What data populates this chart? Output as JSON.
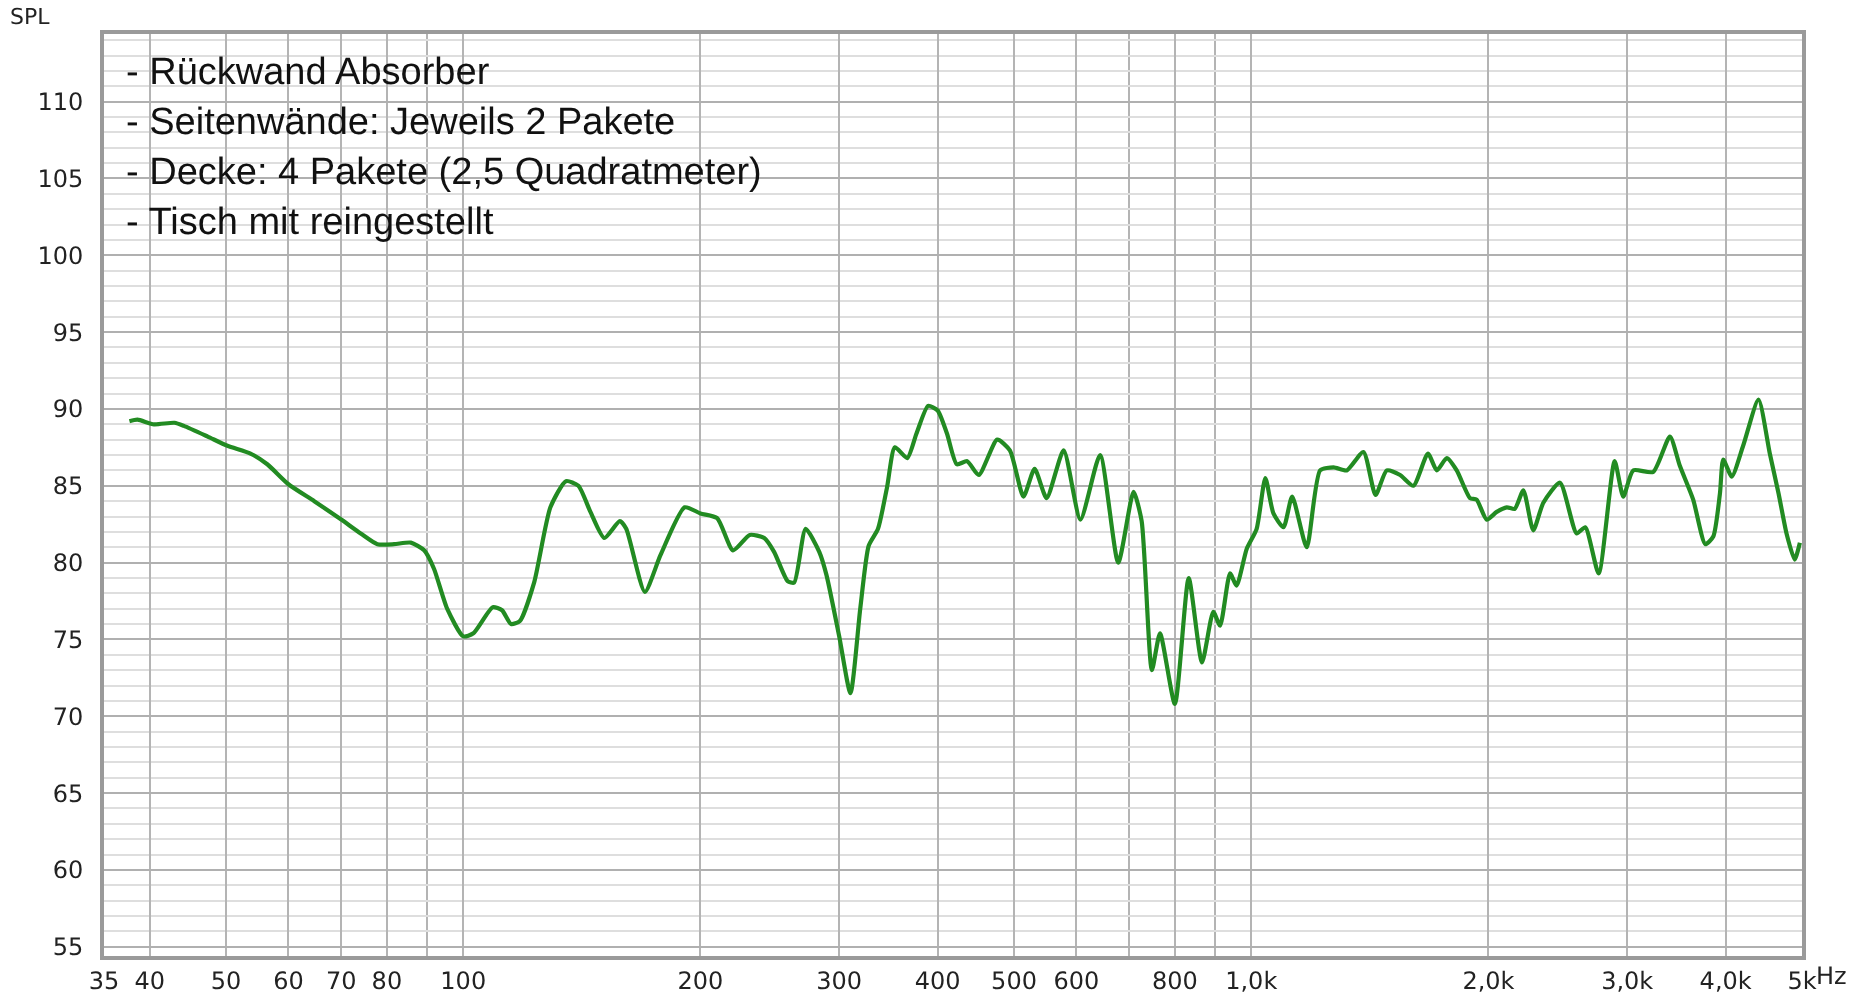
{
  "chart_data": {
    "type": "line",
    "ylabel": "SPL",
    "xlabel": "Hz",
    "annotations": [
      "- Rückwand Absorber",
      "- Seitenwände: Jeweils 2 Pakete",
      "- Decke: 4 Pakete (2,5 Quadratmeter)",
      "- Tisch mit reingestellt"
    ],
    "log": "x",
    "grid": true,
    "xlim": [
      35,
      5000
    ],
    "xticks": [
      35,
      40,
      50,
      60,
      70,
      80,
      {
        "value": 90,
        "label": null
      },
      100,
      200,
      300,
      400,
      500,
      600,
      {
        "value": 700,
        "label": null
      },
      800,
      {
        "value": 900,
        "label": null
      },
      {
        "value": 1000,
        "label": "1,0k"
      },
      {
        "value": 2000,
        "label": "2,0k"
      },
      {
        "value": 3000,
        "label": "3,0k"
      },
      {
        "value": 4000,
        "label": "4,0k"
      },
      {
        "value": 5000,
        "label": "5k"
      }
    ],
    "ylim": [
      54.4,
      114.4
    ],
    "yticks": [
      55,
      {
        "value": 56,
        "label": null
      },
      {
        "value": 57,
        "label": null
      },
      {
        "value": 58,
        "label": null
      },
      {
        "value": 59,
        "label": null
      },
      60,
      {
        "value": 61,
        "label": null
      },
      {
        "value": 62,
        "label": null
      },
      {
        "value": 63,
        "label": null
      },
      {
        "value": 64,
        "label": null
      },
      65,
      {
        "value": 66,
        "label": null
      },
      {
        "value": 67,
        "label": null
      },
      {
        "value": 68,
        "label": null
      },
      {
        "value": 69,
        "label": null
      },
      70,
      {
        "value": 71,
        "label": null
      },
      {
        "value": 72,
        "label": null
      },
      {
        "value": 73,
        "label": null
      },
      {
        "value": 74,
        "label": null
      },
      75,
      {
        "value": 76,
        "label": null
      },
      {
        "value": 77,
        "label": null
      },
      {
        "value": 78,
        "label": null
      },
      {
        "value": 79,
        "label": null
      },
      80,
      {
        "value": 81,
        "label": null
      },
      {
        "value": 82,
        "label": null
      },
      {
        "value": 83,
        "label": null
      },
      {
        "value": 84,
        "label": null
      },
      85,
      {
        "value": 86,
        "label": null
      },
      {
        "value": 87,
        "label": null
      },
      {
        "value": 88,
        "label": null
      },
      {
        "value": 89,
        "label": null
      },
      90,
      {
        "value": 91,
        "label": null
      },
      {
        "value": 92,
        "label": null
      },
      {
        "value": 93,
        "label": null
      },
      {
        "value": 94,
        "label": null
      },
      95,
      {
        "value": 96,
        "label": null
      },
      {
        "value": 97,
        "label": null
      },
      {
        "value": 98,
        "label": null
      },
      {
        "value": 99,
        "label": null
      },
      100,
      {
        "value": 101,
        "label": null
      },
      {
        "value": 102,
        "label": null
      },
      {
        "value": 103,
        "label": null
      },
      {
        "value": 104,
        "label": null
      },
      105,
      {
        "value": 106,
        "label": null
      },
      {
        "value": 107,
        "label": null
      },
      {
        "value": 108,
        "label": null
      },
      {
        "value": 109,
        "label": null
      },
      110,
      {
        "value": 111,
        "label": null
      },
      {
        "value": 112,
        "label": null
      },
      {
        "value": 113,
        "label": null
      },
      {
        "value": 114,
        "label": null
      }
    ],
    "x": [
      37.7,
      38.6,
      40.5,
      43.0,
      44.2,
      47.4,
      50.2,
      53.7,
      56.4,
      60,
      64.7,
      70,
      74.1,
      77.8,
      81.7,
      85.8,
      89.2,
      91.8,
      95.4,
      100,
      103,
      109,
      112,
      115,
      118,
      123,
      129,
      135,
      140,
      145,
      151,
      158,
      161,
      170,
      178,
      191,
      200,
      210,
      220,
      231,
      241,
      248,
      258,
      263,
      272,
      283,
      289,
      300,
      310,
      319,
      327,
      336,
      345,
      353,
      366,
      376,
      389,
      400,
      411,
      423,
      436,
      451,
      476,
      494,
      514,
      531,
      550,
      578,
      607,
      643,
      678,
      709,
      726,
      748,
      766,
      800,
      833,
      866,
      895,
      913,
      940,
      958,
      987,
      1016,
      1042,
      1067,
      1099,
      1127,
      1176,
      1223,
      1272,
      1322,
      1388,
      1438,
      1486,
      1545,
      1606,
      1676,
      1720,
      1771,
      1823,
      1895,
      1932,
      1990,
      2049,
      2110,
      2160,
      2215,
      2280,
      2348,
      2465,
      2588,
      2654,
      2760,
      2892,
      2966,
      3053,
      3237,
      3399,
      3499,
      3638,
      3769,
      3858,
      3934,
      3972,
      4073,
      4210,
      4403,
      4551,
      4669,
      4779,
      4893,
      4969
    ],
    "series": [
      {
        "color": "#228b22",
        "values": [
          89.2,
          89.3,
          89.0,
          89.1,
          88.9,
          88.2,
          87.6,
          87.1,
          86.4,
          85.1,
          84.0,
          82.8,
          81.9,
          81.2,
          81.2,
          81.3,
          80.8,
          79.6,
          77.0,
          75.2,
          75.4,
          77.1,
          76.9,
          76.0,
          76.2,
          78.7,
          83.6,
          85.3,
          85.0,
          83.3,
          81.6,
          82.7,
          82.2,
          78.1,
          80.5,
          83.6,
          83.2,
          82.9,
          80.8,
          81.8,
          81.6,
          80.7,
          78.8,
          78.7,
          82.2,
          80.7,
          79.2,
          75.2,
          71.5,
          77.0,
          81.1,
          82.2,
          84.9,
          87.5,
          86.8,
          88.4,
          90.2,
          89.9,
          88.4,
          86.4,
          86.6,
          85.7,
          88.0,
          87.3,
          84.3,
          86.1,
          84.2,
          87.3,
          82.8,
          87.0,
          80.0,
          84.6,
          82.7,
          73.0,
          75.4,
          70.8,
          79.0,
          73.5,
          76.8,
          75.9,
          79.3,
          78.5,
          80.9,
          82.2,
          85.5,
          83.2,
          82.3,
          84.3,
          81.0,
          86.0,
          86.2,
          86.0,
          87.2,
          84.4,
          86.0,
          85.7,
          85.0,
          87.1,
          86.0,
          86.8,
          86.0,
          84.2,
          84.1,
          82.8,
          83.3,
          83.6,
          83.5,
          84.7,
          82.1,
          83.9,
          85.2,
          81.9,
          82.3,
          79.3,
          86.6,
          84.3,
          86.0,
          85.9,
          88.2,
          86.3,
          84.1,
          81.2,
          81.7,
          84.5,
          86.7,
          85.6,
          87.6,
          90.6,
          87.1,
          84.5,
          81.9,
          80.2,
          81.3
        ]
      }
    ]
  }
}
